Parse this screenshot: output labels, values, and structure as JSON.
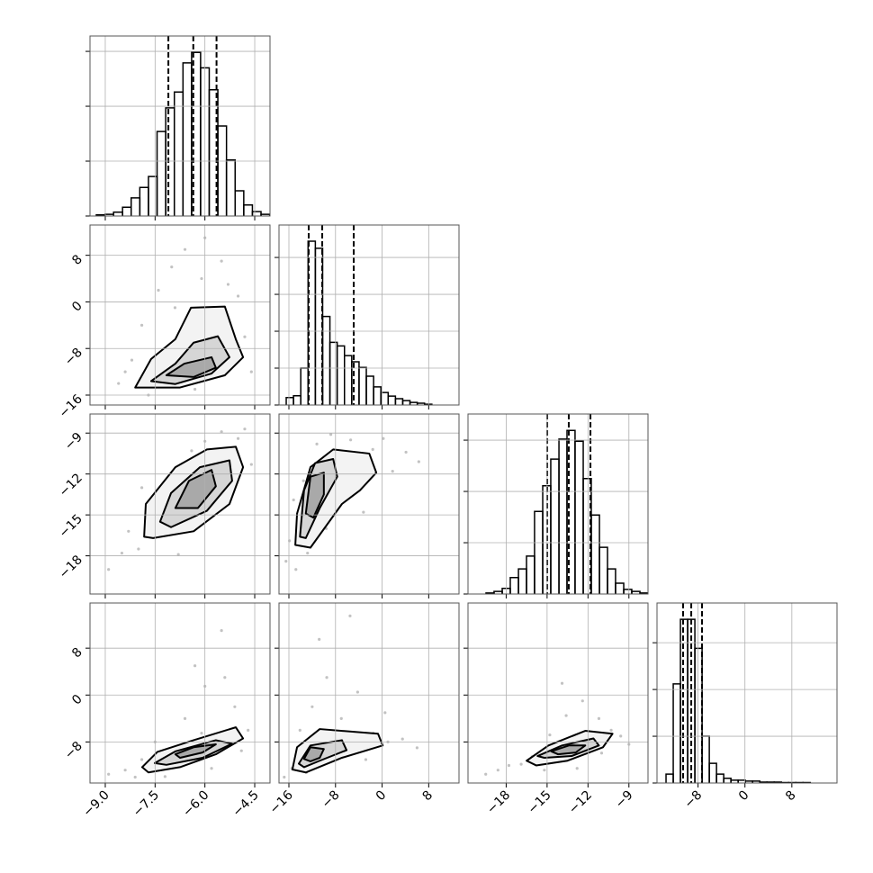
{
  "chart_data": {
    "type": "corner",
    "color": "#000000",
    "point_color": "#9a9a9a",
    "contour_fills": [
      "#f3f3f3",
      "#d6d6d6",
      "#a9a9a9"
    ],
    "grid": true,
    "params": [
      {
        "lim": [
          -9.46,
          -4.04
        ],
        "ticks": [
          {
            "value": -9.0,
            "label": "−9.0"
          },
          {
            "value": -7.5,
            "label": "−7.5"
          },
          {
            "value": -6.0,
            "label": "−6.0"
          },
          {
            "value": -4.5,
            "label": "−4.5"
          }
        ]
      },
      {
        "lim": [
          -17.7,
          13.2
        ],
        "ticks": [
          {
            "value": -16,
            "label": "−16"
          },
          {
            "value": -8,
            "label": "−8"
          },
          0,
          8
        ]
      },
      {
        "lim": [
          -20.8,
          -7.6
        ],
        "ticks": [
          {
            "value": -18,
            "label": "−18"
          },
          {
            "value": -15,
            "label": "−15"
          },
          {
            "value": -12,
            "label": "−12"
          },
          {
            "value": -9,
            "label": "−9"
          }
        ]
      },
      {
        "lim": [
          -15,
          15.7
        ],
        "ticks": [
          {
            "value": -8,
            "label": "−8"
          },
          0,
          8
        ]
      }
    ],
    "histograms": [
      {
        "bins": [
          -9.27,
          -9.01,
          -8.75,
          -8.48,
          -8.22,
          -7.96,
          -7.7,
          -7.44,
          -7.18,
          -6.92,
          -6.66,
          -6.4,
          -6.13,
          -5.87,
          -5.61,
          -5.35,
          -5.09,
          -4.83,
          -4.57,
          -4.31,
          -4.05
        ],
        "values": [
          0.02,
          0.03,
          0.07,
          0.16,
          0.33,
          0.52,
          0.72,
          1.54,
          1.97,
          2.26,
          2.79,
          2.98,
          2.7,
          2.3,
          1.64,
          1.02,
          0.46,
          0.2,
          0.08,
          0.03
        ],
        "ylim": [
          0,
          3.28
        ],
        "yticks": [
          0,
          1,
          2,
          3
        ],
        "quantiles": [
          -7.1,
          -6.35,
          -5.65
        ]
      },
      {
        "bins": [
          -16.46,
          -15.21,
          -13.96,
          -12.71,
          -11.46,
          -10.21,
          -8.96,
          -7.71,
          -6.46,
          -5.21,
          -3.96,
          -2.71,
          -1.46,
          -0.21,
          1.04,
          2.29,
          3.54,
          4.79,
          6.04,
          7.29,
          8.54
        ],
        "values": [
          0.2,
          0.25,
          1.0,
          4.44,
          4.25,
          2.4,
          1.7,
          1.6,
          1.34,
          1.17,
          1.02,
          0.78,
          0.49,
          0.34,
          0.24,
          0.17,
          0.12,
          0.07,
          0.05,
          0.02
        ],
        "ylim": [
          0,
          4.88
        ],
        "yticks": [
          0,
          1,
          2,
          3,
          4
        ],
        "quantiles": [
          -12.6,
          -10.28,
          -4.87
        ]
      },
      {
        "bins": [
          -19.48,
          -18.89,
          -18.29,
          -17.7,
          -17.1,
          -16.51,
          -15.92,
          -15.32,
          -14.73,
          -14.13,
          -13.54,
          -12.95,
          -12.35,
          -11.76,
          -11.16,
          -10.57,
          -9.98,
          -9.38,
          -8.79,
          -8.19,
          -7.6
        ],
        "values": [
          0.02,
          0.05,
          0.11,
          0.32,
          0.49,
          0.74,
          1.61,
          2.11,
          2.63,
          3.02,
          3.19,
          2.98,
          2.25,
          1.54,
          0.91,
          0.49,
          0.21,
          0.09,
          0.05,
          0.02
        ],
        "ylim": [
          0,
          3.51
        ],
        "yticks": [
          0,
          1,
          2,
          3
        ],
        "quantiles": [
          -14.99,
          -13.41,
          -11.82
        ]
      },
      {
        "bins": [
          -13.46,
          -12.23,
          -11.0,
          -9.77,
          -8.54,
          -7.31,
          -6.08,
          -4.85,
          -3.62,
          -2.39,
          -1.16,
          0.07,
          1.3,
          2.53,
          3.76,
          4.99,
          6.22,
          7.45,
          8.68,
          9.91,
          11.14
        ],
        "values": [
          0.19,
          2.12,
          3.5,
          3.5,
          2.88,
          1.0,
          0.42,
          0.19,
          0.1,
          0.06,
          0.06,
          0.04,
          0.04,
          0.02,
          0.02,
          0.02,
          0.01,
          0.01,
          0.01,
          0.01
        ],
        "ylim": [
          0,
          3.85
        ],
        "yticks": [
          0,
          1,
          2,
          3
        ],
        "quantiles": [
          -10.55,
          -9.16,
          -7.32
        ]
      }
    ],
    "pairs": [
      {
        "contours": [
          {
            "x": [
              -8.1,
              -7.62,
              -6.89,
              -6.42,
              -5.4,
              -5.07,
              -4.85,
              -5.4,
              -6.75
            ],
            "y": [
              -14.7,
              -9.8,
              -6.4,
              -1.0,
              -0.8,
              -6.4,
              -9.5,
              -12.6,
              -14.7
            ]
          },
          {
            "x": [
              -7.62,
              -6.89,
              -6.34,
              -5.61,
              -5.26,
              -5.8,
              -6.89
            ],
            "y": [
              -13.6,
              -10.6,
              -7.0,
              -5.9,
              -9.5,
              -12.3,
              -14.1
            ]
          },
          {
            "x": [
              -7.16,
              -6.62,
              -5.8,
              -5.67,
              -6.34
            ],
            "y": [
              -12.6,
              -10.6,
              -9.5,
              -11.3,
              -12.9
            ]
          }
        ],
        "points": {
          "x": [
            -8.6,
            -8.2,
            -7.9,
            -7.4,
            -7.0,
            -6.6,
            -6.1,
            -5.7,
            -5.3,
            -4.8,
            -4.6,
            -7.7,
            -6.3,
            -5.5,
            -6.9,
            -8.4,
            -5.0,
            -6.0
          ],
          "y": [
            -14,
            -10,
            -4,
            2,
            6,
            9,
            4,
            -2,
            3,
            -6,
            -12,
            -16,
            -15,
            7,
            -1,
            -12,
            1,
            11
          ]
        }
      },
      {
        "contours": [
          {
            "x": [
              -7.83,
              -7.78,
              -6.89,
              -5.94,
              -5.07,
              -4.85,
              -5.26,
              -6.34,
              -7.56
            ],
            "y": [
              -16.6,
              -14.2,
              -11.5,
              -10.2,
              -10.0,
              -11.5,
              -14.2,
              -16.2,
              -16.7
            ]
          },
          {
            "x": [
              -7.35,
              -7.02,
              -6.15,
              -5.26,
              -5.18,
              -5.94,
              -7.02
            ],
            "y": [
              -15.5,
              -13.4,
              -11.5,
              -11.0,
              -12.5,
              -14.7,
              -15.9
            ]
          },
          {
            "x": [
              -6.89,
              -6.48,
              -5.8,
              -5.67,
              -6.21
            ],
            "y": [
              -14.5,
              -12.5,
              -11.7,
              -12.9,
              -14.5
            ]
          }
        ],
        "points": {
          "x": [
            -8.9,
            -8.5,
            -8.0,
            -7.6,
            -7.2,
            -6.8,
            -6.4,
            -6.0,
            -5.5,
            -5.0,
            -4.6,
            -7.9,
            -6.6,
            -5.3,
            -4.8,
            -8.3
          ],
          "y": [
            -19.0,
            -17.8,
            -17.5,
            -15.0,
            -13.2,
            -17.9,
            -10.3,
            -9.6,
            -8.9,
            -9.4,
            -11.3,
            -13.0,
            -15.9,
            -13.6,
            -8.7,
            -16.2
          ]
        }
      },
      {
        "contours": [
          {
            "x": [
              -14.9,
              -14.6,
              -12.3,
              -8.4,
              -2.2,
              -1.0,
              -3.8,
              -6.9,
              -12.3
            ],
            "y": [
              -17.2,
              -14.9,
              -11.5,
              -10.2,
              -10.5,
              -11.9,
              -13.2,
              -14.2,
              -17.4
            ]
          },
          {
            "x": [
              -14.1,
              -13.4,
              -11.5,
              -8.4,
              -7.7,
              -10.7,
              -13.1
            ],
            "y": [
              -16.6,
              -13.2,
              -11.2,
              -10.9,
              -12.2,
              -14.5,
              -16.7
            ]
          },
          {
            "x": [
              -13.1,
              -12.3,
              -10.0,
              -10.0,
              -11.8
            ],
            "y": [
              -14.9,
              -12.2,
              -11.9,
              -13.5,
              -15.2
            ]
          }
        ],
        "points": {
          "x": [
            -16.5,
            -15.9,
            -14.8,
            -13.5,
            -11.2,
            -8.8,
            -5.4,
            -1.6,
            1.8,
            4.1,
            -9.6,
            -3.2,
            -12.8,
            6.3,
            0.2,
            -15.2
          ],
          "y": [
            -18.4,
            -16.9,
            -19.0,
            -12.5,
            -9.8,
            -9.1,
            -9.5,
            -10.2,
            -11.8,
            -10.4,
            -16.0,
            -14.8,
            -17.8,
            -11.1,
            -9.4,
            -13.9
          ]
        }
      },
      {
        "contours": [
          {
            "x": [
              -7.89,
              -7.43,
              -6.34,
              -5.07,
              -4.85,
              -5.67,
              -6.75,
              -7.7
            ],
            "y": [
              -12.3,
              -9.7,
              -7.7,
              -5.5,
              -7.4,
              -10.1,
              -12.3,
              -13.2
            ]
          },
          {
            "x": [
              -7.51,
              -6.89,
              -5.67,
              -5.18,
              -6.07,
              -7.16
            ],
            "y": [
              -11.6,
              -9.6,
              -7.7,
              -8.3,
              -10.7,
              -11.9
            ]
          },
          {
            "x": [
              -6.89,
              -6.34,
              -5.67,
              -6.07,
              -6.75
            ],
            "y": [
              -10.1,
              -8.9,
              -8.4,
              -9.8,
              -10.7
            ]
          }
        ],
        "points": {
          "x": [
            -8.9,
            -8.4,
            -7.9,
            -7.2,
            -6.6,
            -6.0,
            -5.5,
            -5.1,
            -4.7,
            -6.3,
            -5.8,
            -7.5,
            -5.4,
            -4.9,
            -6.1,
            -8.1
          ],
          "y": [
            -13.5,
            -12.8,
            -11.0,
            -13.9,
            -4.0,
            1.5,
            11.0,
            -2.0,
            -6.0,
            5.0,
            -12.5,
            -8.0,
            3.0,
            -9.5,
            -6.5,
            -14.0
          ]
        }
      },
      {
        "contours": [
          {
            "x": [
              -15.4,
              -14.6,
              -10.7,
              -0.7,
              0.1,
              -6.9,
              -13.1
            ],
            "y": [
              -12.7,
              -8.9,
              -5.8,
              -6.6,
              -8.6,
              -10.7,
              -13.2
            ]
          },
          {
            "x": [
              -14.3,
              -12.3,
              -6.9,
              -6.1,
              -10.7,
              -13.4
            ],
            "y": [
              -11.7,
              -8.6,
              -7.7,
              -9.4,
              -11.2,
              -12.3
            ]
          },
          {
            "x": [
              -13.4,
              -12.3,
              -10.0,
              -10.7,
              -12.3
            ],
            "y": [
              -10.9,
              -8.9,
              -9.2,
              -10.7,
              -11.3
            ]
          }
        ],
        "points": {
          "x": [
            -16.8,
            -15.5,
            -14.1,
            -12.0,
            -9.5,
            -7.0,
            -4.2,
            -1.5,
            1.0,
            3.5,
            -10.8,
            -5.5,
            -2.8,
            0.5,
            -13.0,
            6.0
          ],
          "y": [
            -14.0,
            -12.5,
            -6.0,
            -2.0,
            3.0,
            -4.0,
            0.5,
            -6.5,
            -8.0,
            -7.5,
            9.5,
            13.5,
            -11.0,
            -3.0,
            -13.2,
            -9.0
          ]
        }
      },
      {
        "contours": [
          {
            "x": [
              -16.5,
              -14.9,
              -12.2,
              -10.2,
              -10.9,
              -13.5,
              -15.8
            ],
            "y": [
              -11.2,
              -8.6,
              -6.1,
              -6.6,
              -8.9,
              -11.2,
              -12.0
            ]
          },
          {
            "x": [
              -15.7,
              -13.9,
              -11.6,
              -11.2,
              -13.2,
              -15.2
            ],
            "y": [
              -10.4,
              -8.6,
              -7.4,
              -8.6,
              -10.4,
              -10.7
            ]
          },
          {
            "x": [
              -14.7,
              -13.4,
              -12.2,
              -12.9,
              -14.2
            ],
            "y": [
              -9.6,
              -8.6,
              -8.6,
              -9.8,
              -10.1
            ]
          }
        ],
        "points": {
          "x": [
            -19.5,
            -18.6,
            -17.8,
            -16.9,
            -16.1,
            -14.8,
            -13.6,
            -12.4,
            -11.2,
            -10.3,
            -9.6,
            -12.8,
            -11.0,
            -15.2,
            -9.0,
            -13.9
          ],
          "y": [
            -13.5,
            -12.8,
            -12.0,
            -11.8,
            -10.5,
            -6.8,
            -3.5,
            -1.0,
            -4.0,
            -6.0,
            -7.0,
            -12.5,
            -9.9,
            -12.8,
            -8.4,
            2.0
          ]
        }
      }
    ]
  }
}
